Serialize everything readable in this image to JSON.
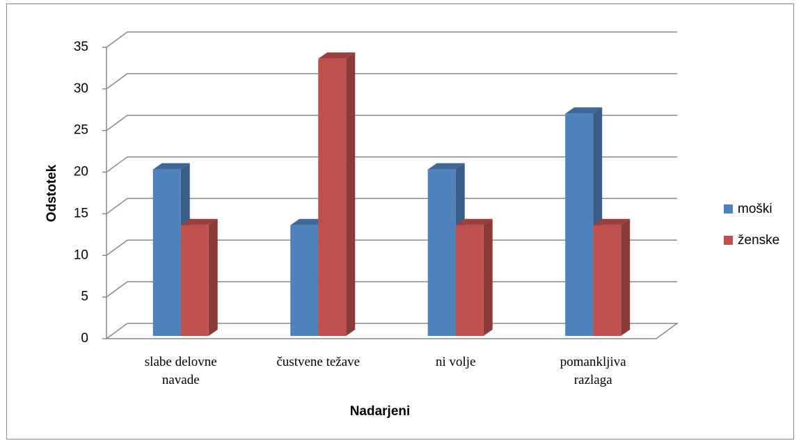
{
  "chart_data": {
    "type": "bar3d",
    "categories": [
      "slabe delovne navade",
      "čustvene težave",
      "ni volje",
      "pomankljiva razlaga"
    ],
    "series": [
      {
        "name": "moški",
        "color": "#4f81bd",
        "values": [
          20,
          13.3,
          20,
          26.7
        ]
      },
      {
        "name": "ženske",
        "color": "#c0504d",
        "values": [
          13.3,
          33.3,
          13.3,
          13.3
        ]
      }
    ],
    "ylim": [
      0,
      35
    ],
    "yticks": [
      0,
      5,
      10,
      15,
      20,
      25,
      30,
      35
    ],
    "ylabel": "Odstotek",
    "xlabel": "Nadarjeni",
    "grid": true,
    "legend": "right"
  }
}
